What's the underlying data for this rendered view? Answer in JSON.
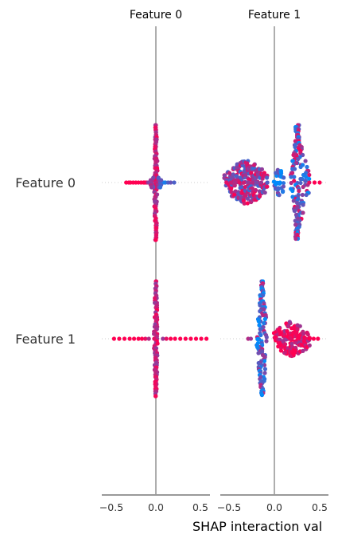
{
  "chart_data": {
    "type": "scatter",
    "subtype": "shap-interaction-summary",
    "features": [
      "Feature 0",
      "Feature 1"
    ],
    "columns": [
      {
        "title": "Feature 0",
        "xlim": [
          -0.62,
          0.62
        ],
        "ticks": [
          -0.5,
          0.0,
          0.5
        ],
        "tick_labels": [
          "−0.5",
          "0.0",
          "0.5"
        ]
      },
      {
        "title": "Feature 1",
        "xlim": [
          -0.62,
          0.62
        ],
        "ticks": [
          -0.5,
          0.0,
          0.5
        ],
        "tick_labels": [
          "−0.5",
          "0.0",
          "0.5"
        ]
      }
    ],
    "xlabel": "SHAP interaction val",
    "colors": {
      "low": "#008bfb",
      "high": "#ff0052",
      "zero_line": "#999999",
      "axis": "#333333",
      "dotted": "#cccccc"
    },
    "cells": [
      {
        "row": "Feature 0",
        "col": "Feature 0",
        "points": [
          [
            -0.34,
            0,
            1
          ],
          [
            -0.31,
            0,
            1
          ],
          [
            -0.29,
            0,
            1
          ],
          [
            -0.26,
            0,
            1
          ],
          [
            -0.23,
            0,
            1
          ],
          [
            -0.2,
            0,
            1
          ],
          [
            -0.17,
            0,
            1
          ],
          [
            -0.14,
            0,
            1
          ],
          [
            -0.13,
            0,
            1
          ],
          [
            -0.11,
            0,
            1
          ],
          [
            -0.09,
            0,
            0.6
          ],
          [
            -0.07,
            0,
            0.5
          ],
          [
            -0.05,
            0,
            0.5
          ],
          [
            0.05,
            0,
            0.2
          ],
          [
            0.07,
            0,
            0.2
          ],
          [
            0.09,
            0,
            0.1
          ],
          [
            0.11,
            0,
            0.1
          ],
          [
            0.14,
            0,
            0.3
          ],
          [
            0.17,
            0,
            0.4
          ],
          [
            0.21,
            0,
            0.3
          ],
          [
            -0.04,
            1,
            0.6
          ],
          [
            0.04,
            1,
            0.5
          ],
          [
            -0.06,
            1,
            0.7
          ],
          [
            0.06,
            1,
            0.3
          ],
          [
            -0.03,
            2,
            0.4
          ],
          [
            0.03,
            2,
            0.5
          ],
          [
            -0.05,
            2,
            0.6
          ],
          [
            0.05,
            2,
            0.2
          ],
          [
            -0.04,
            -1,
            0.7
          ],
          [
            0.04,
            -1,
            0.5
          ],
          [
            -0.06,
            -1,
            0.6
          ],
          [
            0.06,
            -1,
            0.4
          ],
          [
            -0.03,
            -2,
            0.5
          ],
          [
            0.03,
            -2,
            0.3
          ]
        ],
        "spine": {
          "x_center": 0.0,
          "half_height": 1.0
        }
      },
      {
        "row": "Feature 0",
        "col": "Feature 1",
        "points": [
          [
            -0.55,
            0,
            0.9
          ],
          [
            -0.5,
            0,
            0.8
          ],
          [
            -0.45,
            0,
            0.7
          ],
          [
            -0.4,
            0,
            0.9
          ],
          [
            -0.35,
            0,
            0.8
          ],
          [
            -0.3,
            0,
            0.6
          ],
          [
            -0.25,
            0,
            0.7
          ],
          [
            -0.2,
            0,
            0.5
          ],
          [
            -0.15,
            0,
            0.6
          ],
          [
            -0.08,
            0,
            0.3
          ],
          [
            0.4,
            0,
            0.9
          ],
          [
            0.46,
            0,
            1
          ],
          [
            0.52,
            0,
            1
          ]
        ],
        "clusters": [
          {
            "x_min": -0.57,
            "x_max": -0.08,
            "shape": "lens",
            "half_height": 0.38
          },
          {
            "x_min": 0.0,
            "x_max": 0.12,
            "shape": "lens",
            "half_height": 0.25,
            "color_bias": 0.15
          },
          {
            "x_min": 0.12,
            "x_max": 0.5,
            "shape": "tree",
            "half_height": 1.0
          }
        ]
      },
      {
        "row": "Feature 1",
        "col": "Feature 0",
        "points": [
          [
            -0.48,
            0,
            1
          ],
          [
            -0.42,
            0,
            1
          ],
          [
            -0.36,
            0,
            1
          ],
          [
            -0.3,
            0,
            1
          ],
          [
            -0.25,
            0,
            1
          ],
          [
            -0.2,
            0,
            1
          ],
          [
            -0.16,
            0,
            1
          ],
          [
            -0.12,
            0,
            0.9
          ],
          [
            -0.08,
            0,
            0.7
          ],
          [
            0.08,
            0,
            0.6
          ],
          [
            0.12,
            0,
            0.9
          ],
          [
            0.17,
            0,
            1
          ],
          [
            0.22,
            0,
            1
          ],
          [
            0.28,
            0,
            1
          ],
          [
            0.34,
            0,
            1
          ],
          [
            0.4,
            0,
            1
          ],
          [
            0.46,
            0,
            1
          ],
          [
            0.52,
            0,
            1
          ],
          [
            0.58,
            0,
            1
          ]
        ],
        "spine": {
          "x_center": 0.0,
          "half_height": 1.0
        }
      },
      {
        "row": "Feature 1",
        "col": "Feature 1",
        "points": [
          [
            -0.3,
            0,
            0.7
          ],
          [
            -0.27,
            0,
            0.6
          ],
          [
            0.4,
            0,
            1
          ],
          [
            0.45,
            0,
            1
          ],
          [
            0.5,
            0,
            1
          ]
        ],
        "clusters": [
          {
            "x_min": -0.28,
            "x_max": 0.0,
            "shape": "column",
            "half_height": 1.0,
            "color_bias": 0.35
          },
          {
            "x_min": 0.0,
            "x_max": 0.42,
            "shape": "lens",
            "half_height": 0.3,
            "color_bias": 0.95
          }
        ]
      }
    ]
  }
}
